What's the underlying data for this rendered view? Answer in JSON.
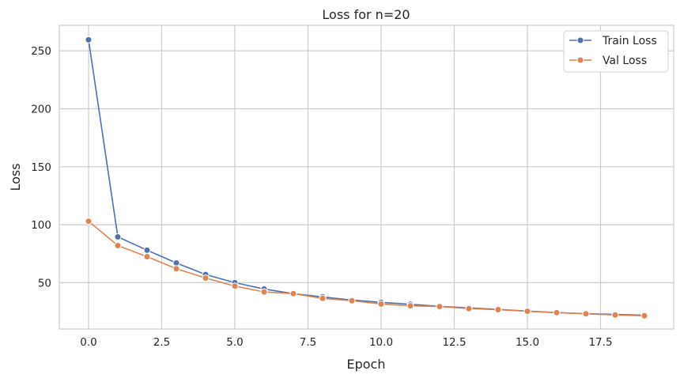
{
  "chart_data": {
    "type": "line",
    "title": "Loss for n=20",
    "xlabel": "Epoch",
    "ylabel": "Loss",
    "xlim": [
      -1,
      20
    ],
    "ylim": [
      10,
      272
    ],
    "xticks": [
      0.0,
      2.5,
      5.0,
      7.5,
      10.0,
      12.5,
      15.0,
      17.5
    ],
    "xtick_labels": [
      "0.0",
      "2.5",
      "5.0",
      "7.5",
      "10.0",
      "12.5",
      "15.0",
      "17.5"
    ],
    "yticks": [
      50,
      100,
      150,
      200,
      250
    ],
    "ytick_labels": [
      "50",
      "100",
      "150",
      "200",
      "250"
    ],
    "grid": true,
    "legend": "top-right",
    "x": [
      0,
      1,
      2,
      3,
      4,
      5,
      6,
      7,
      8,
      9,
      10,
      11,
      12,
      13,
      14,
      15,
      16,
      17,
      18,
      19
    ],
    "series": [
      {
        "name": "Train Loss",
        "color": "#4c72b0",
        "values": [
          259.5,
          89.5,
          78,
          67,
          57,
          50,
          44.5,
          40.5,
          37.7,
          35,
          33,
          31.3,
          29.6,
          28.2,
          26.9,
          25.5,
          24.1,
          23.3,
          22.6,
          21.9
        ]
      },
      {
        "name": "Val Loss",
        "color": "#dd8452",
        "values": [
          103,
          82,
          72.4,
          62,
          54,
          47,
          42,
          40.5,
          36.4,
          34.4,
          31.6,
          30,
          29.4,
          27.6,
          26.7,
          25.3,
          24.1,
          23.1,
          22.1,
          21.4
        ]
      }
    ]
  }
}
